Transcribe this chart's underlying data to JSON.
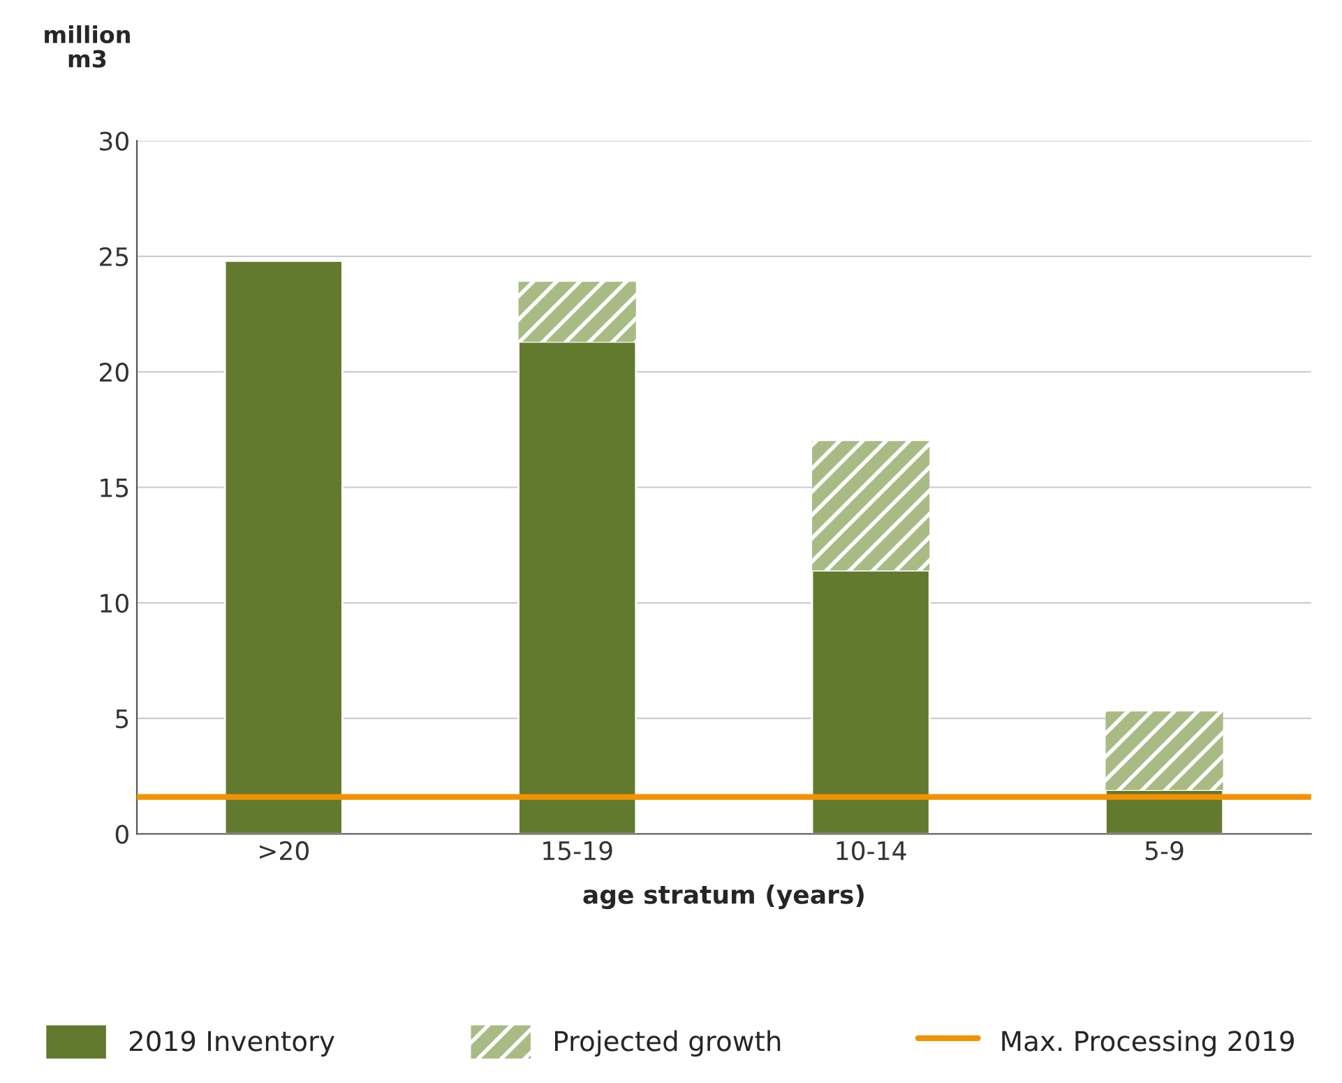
{
  "chart_data": {
    "type": "bar",
    "stacked": true,
    "ylabel": "million\nm3",
    "xlabel": "age stratum (years)",
    "categories": [
      ">20",
      "15-19",
      "10-14",
      "5-9"
    ],
    "series": [
      {
        "name": "2019 Inventory",
        "color": "#617a2e",
        "values": [
          24.8,
          21.3,
          11.4,
          1.9
        ]
      },
      {
        "name": "Projected growth",
        "color": "#a8bb84",
        "values": [
          0,
          2.6,
          5.6,
          3.4
        ]
      }
    ],
    "ref_lines": [
      {
        "axis": "y",
        "value": 1.6,
        "label": "Max. Processing 2019",
        "color": "#f39200"
      }
    ],
    "ylim": [
      0,
      30
    ],
    "yticks": [
      0,
      5,
      10,
      15,
      20,
      25,
      30
    ],
    "grid": "y",
    "legend": "bottom"
  }
}
